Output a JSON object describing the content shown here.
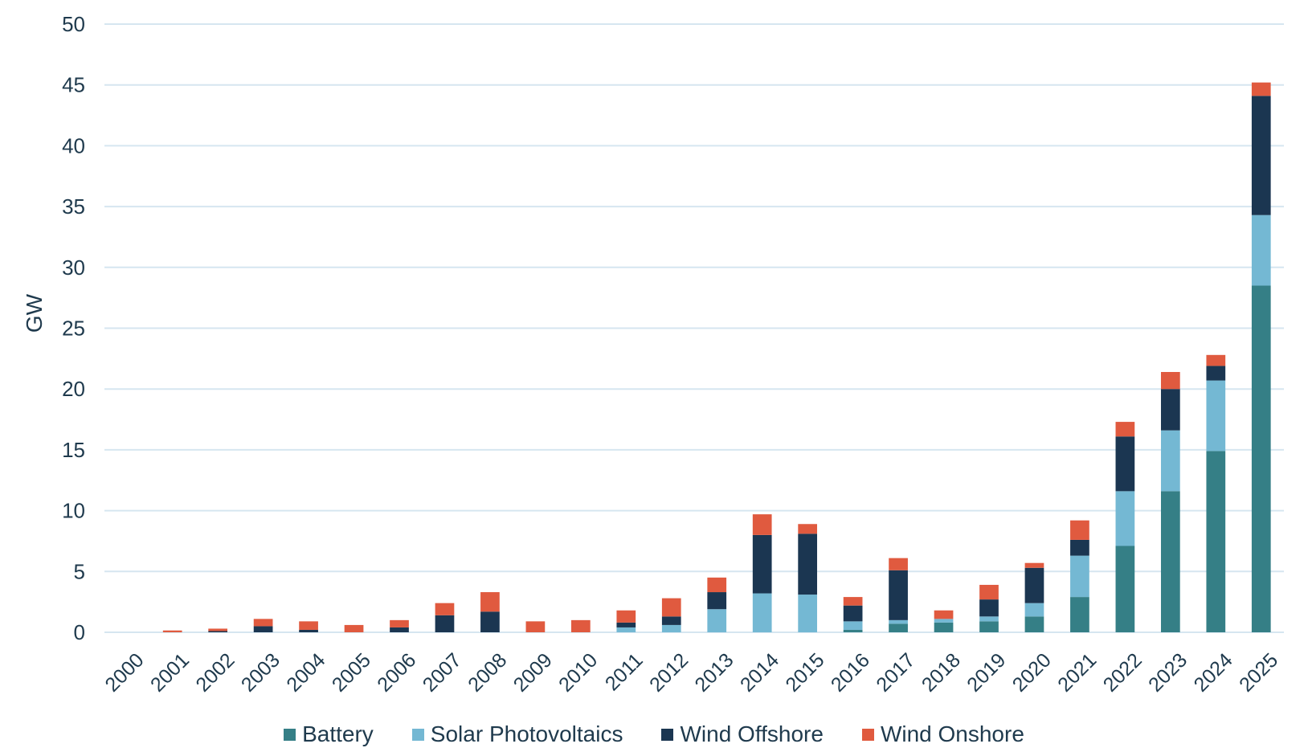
{
  "chart_data": {
    "type": "bar",
    "stacked": true,
    "title": "",
    "xlabel": "",
    "ylabel": "GW",
    "ylim": [
      0,
      50
    ],
    "yticks": [
      0,
      5,
      10,
      15,
      20,
      25,
      30,
      35,
      40,
      45,
      50
    ],
    "grid": true,
    "legend_position": "bottom",
    "categories": [
      "2000",
      "2001",
      "2002",
      "2003",
      "2004",
      "2005",
      "2006",
      "2007",
      "2008",
      "2009",
      "2010",
      "2011",
      "2012",
      "2013",
      "2014",
      "2015",
      "2016",
      "2017",
      "2018",
      "2019",
      "2020",
      "2021",
      "2022",
      "2023",
      "2024",
      "2025"
    ],
    "series": [
      {
        "name": "Battery",
        "color": "#357f86",
        "values": [
          0,
          0,
          0,
          0,
          0,
          0,
          0,
          0,
          0,
          0,
          0,
          0,
          0,
          0,
          0,
          0,
          0.2,
          0.7,
          0.8,
          0.9,
          1.3,
          2.9,
          7.1,
          11.6,
          14.9,
          28.5
        ]
      },
      {
        "name": "Solar Photovoltaics",
        "color": "#74b8d3",
        "values": [
          0,
          0,
          0,
          0,
          0,
          0,
          0,
          0,
          0,
          0,
          0,
          0.4,
          0.6,
          1.9,
          3.2,
          3.1,
          0.7,
          0.3,
          0.3,
          0.4,
          1.1,
          3.4,
          4.5,
          5.0,
          5.8,
          5.8
        ]
      },
      {
        "name": "Wind Offshore",
        "color": "#1b3651",
        "values": [
          0,
          0,
          0.1,
          0.5,
          0.2,
          0,
          0.4,
          1.4,
          1.7,
          0,
          0,
          0.4,
          0.7,
          1.4,
          4.8,
          5.0,
          1.3,
          4.1,
          0,
          1.4,
          2.9,
          1.3,
          4.5,
          3.4,
          1.2,
          9.8
        ]
      },
      {
        "name": "Wind Onshore",
        "color": "#e05a3f",
        "values": [
          0,
          0.15,
          0.2,
          0.6,
          0.7,
          0.6,
          0.6,
          1.0,
          1.6,
          0.9,
          1.0,
          1.0,
          1.5,
          1.2,
          1.7,
          0.8,
          0.7,
          1.0,
          0.7,
          1.2,
          0.4,
          1.6,
          1.2,
          1.4,
          0.9,
          1.1
        ]
      }
    ]
  }
}
